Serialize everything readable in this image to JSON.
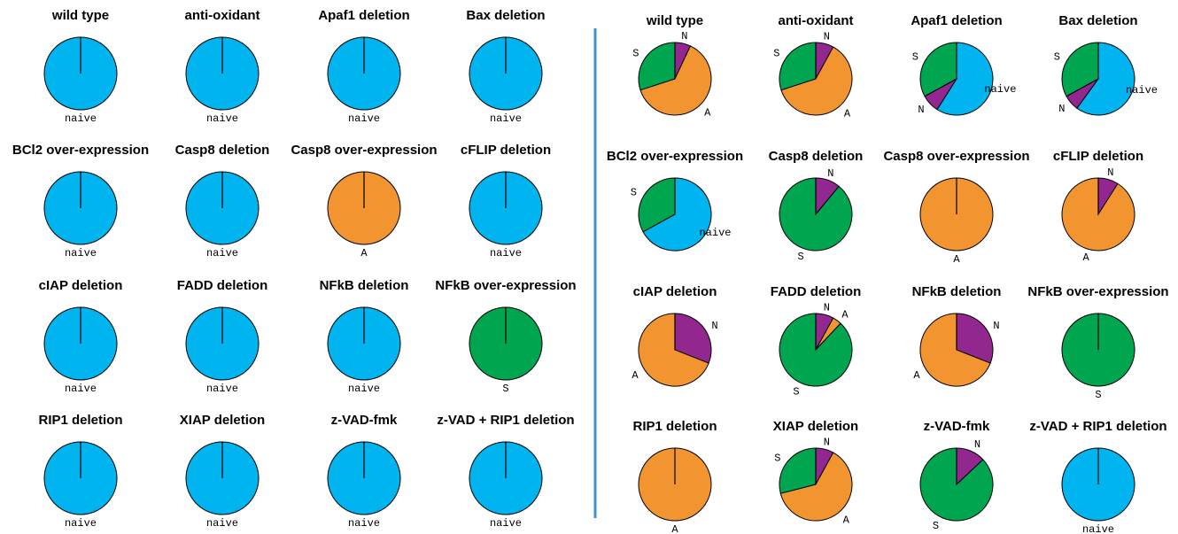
{
  "colors": {
    "naive": "#00B4F0",
    "A": "#F29530",
    "S": "#00A54F",
    "N": "#92278F",
    "divider": "#3F8FD0"
  },
  "chart_data": [
    {
      "type": "pie",
      "panel": "left",
      "charts": [
        {
          "title": "wild type",
          "slices": [
            {
              "label": "naive",
              "value": 1.0
            }
          ]
        },
        {
          "title": "anti-oxidant",
          "slices": [
            {
              "label": "naive",
              "value": 1.0
            }
          ]
        },
        {
          "title": "Apaf1 deletion",
          "slices": [
            {
              "label": "naive",
              "value": 1.0
            }
          ]
        },
        {
          "title": "Bax deletion",
          "slices": [
            {
              "label": "naive",
              "value": 1.0
            }
          ]
        },
        {
          "title": "BCl2 over-expression",
          "slices": [
            {
              "label": "naive",
              "value": 1.0
            }
          ]
        },
        {
          "title": "Casp8 deletion",
          "slices": [
            {
              "label": "naive",
              "value": 1.0
            }
          ]
        },
        {
          "title": "Casp8 over-expression",
          "slices": [
            {
              "label": "A",
              "value": 1.0
            }
          ]
        },
        {
          "title": "cFLIP deletion",
          "slices": [
            {
              "label": "naive",
              "value": 1.0
            }
          ]
        },
        {
          "title": "cIAP deletion",
          "slices": [
            {
              "label": "naive",
              "value": 1.0
            }
          ]
        },
        {
          "title": "FADD deletion",
          "slices": [
            {
              "label": "naive",
              "value": 1.0
            }
          ]
        },
        {
          "title": "NFkB deletion",
          "slices": [
            {
              "label": "naive",
              "value": 1.0
            }
          ]
        },
        {
          "title": "NFkB over-expression",
          "slices": [
            {
              "label": "S",
              "value": 1.0
            }
          ]
        },
        {
          "title": "RIP1 deletion",
          "slices": [
            {
              "label": "naive",
              "value": 1.0
            }
          ]
        },
        {
          "title": "XIAP deletion",
          "slices": [
            {
              "label": "naive",
              "value": 1.0
            }
          ]
        },
        {
          "title": "z-VAD-fmk",
          "slices": [
            {
              "label": "naive",
              "value": 1.0
            }
          ]
        },
        {
          "title": "z-VAD + RIP1 deletion",
          "slices": [
            {
              "label": "naive",
              "value": 1.0
            }
          ]
        }
      ]
    },
    {
      "type": "pie",
      "panel": "right",
      "charts": [
        {
          "title": "wild type",
          "slices": [
            {
              "label": "N",
              "value": 0.07
            },
            {
              "label": "A",
              "value": 0.63
            },
            {
              "label": "S",
              "value": 0.3
            }
          ]
        },
        {
          "title": "anti-oxidant",
          "slices": [
            {
              "label": "N",
              "value": 0.08
            },
            {
              "label": "A",
              "value": 0.62
            },
            {
              "label": "S",
              "value": 0.3
            }
          ]
        },
        {
          "title": "Apaf1 deletion",
          "slices": [
            {
              "label": "naive",
              "value": 0.59
            },
            {
              "label": "N",
              "value": 0.08
            },
            {
              "label": "S",
              "value": 0.33
            }
          ]
        },
        {
          "title": "Bax deletion",
          "slices": [
            {
              "label": "naive",
              "value": 0.6
            },
            {
              "label": "N",
              "value": 0.07
            },
            {
              "label": "S",
              "value": 0.33
            }
          ]
        },
        {
          "title": "BCl2 over-expression",
          "slices": [
            {
              "label": "naive",
              "value": 0.67
            },
            {
              "label": "S",
              "value": 0.33
            }
          ]
        },
        {
          "title": "Casp8 deletion",
          "slices": [
            {
              "label": "N",
              "value": 0.11
            },
            {
              "label": "S",
              "value": 0.89
            }
          ]
        },
        {
          "title": "Casp8 over-expression",
          "slices": [
            {
              "label": "A",
              "value": 1.0
            }
          ]
        },
        {
          "title": "cFLIP deletion",
          "slices": [
            {
              "label": "N",
              "value": 0.09
            },
            {
              "label": "A",
              "value": 0.91
            }
          ]
        },
        {
          "title": "cIAP deletion",
          "slices": [
            {
              "label": "N",
              "value": 0.31
            },
            {
              "label": "A",
              "value": 0.69
            }
          ]
        },
        {
          "title": "FADD deletion",
          "slices": [
            {
              "label": "N",
              "value": 0.08
            },
            {
              "label": "A",
              "value": 0.04
            },
            {
              "label": "S",
              "value": 0.88
            }
          ]
        },
        {
          "title": "NFkB deletion",
          "slices": [
            {
              "label": "N",
              "value": 0.31
            },
            {
              "label": "A",
              "value": 0.69
            }
          ]
        },
        {
          "title": "NFkB over-expression",
          "slices": [
            {
              "label": "S",
              "value": 1.0
            }
          ]
        },
        {
          "title": "RIP1 deletion",
          "slices": [
            {
              "label": "A",
              "value": 1.0
            }
          ]
        },
        {
          "title": "XIAP deletion",
          "slices": [
            {
              "label": "N",
              "value": 0.08
            },
            {
              "label": "A",
              "value": 0.63
            },
            {
              "label": "S",
              "value": 0.29
            }
          ]
        },
        {
          "title": "z-VAD-fmk",
          "slices": [
            {
              "label": "N",
              "value": 0.13
            },
            {
              "label": "S",
              "value": 0.87
            }
          ]
        },
        {
          "title": "z-VAD + RIP1 deletion",
          "slices": [
            {
              "label": "naive",
              "value": 1.0
            }
          ]
        }
      ]
    }
  ]
}
